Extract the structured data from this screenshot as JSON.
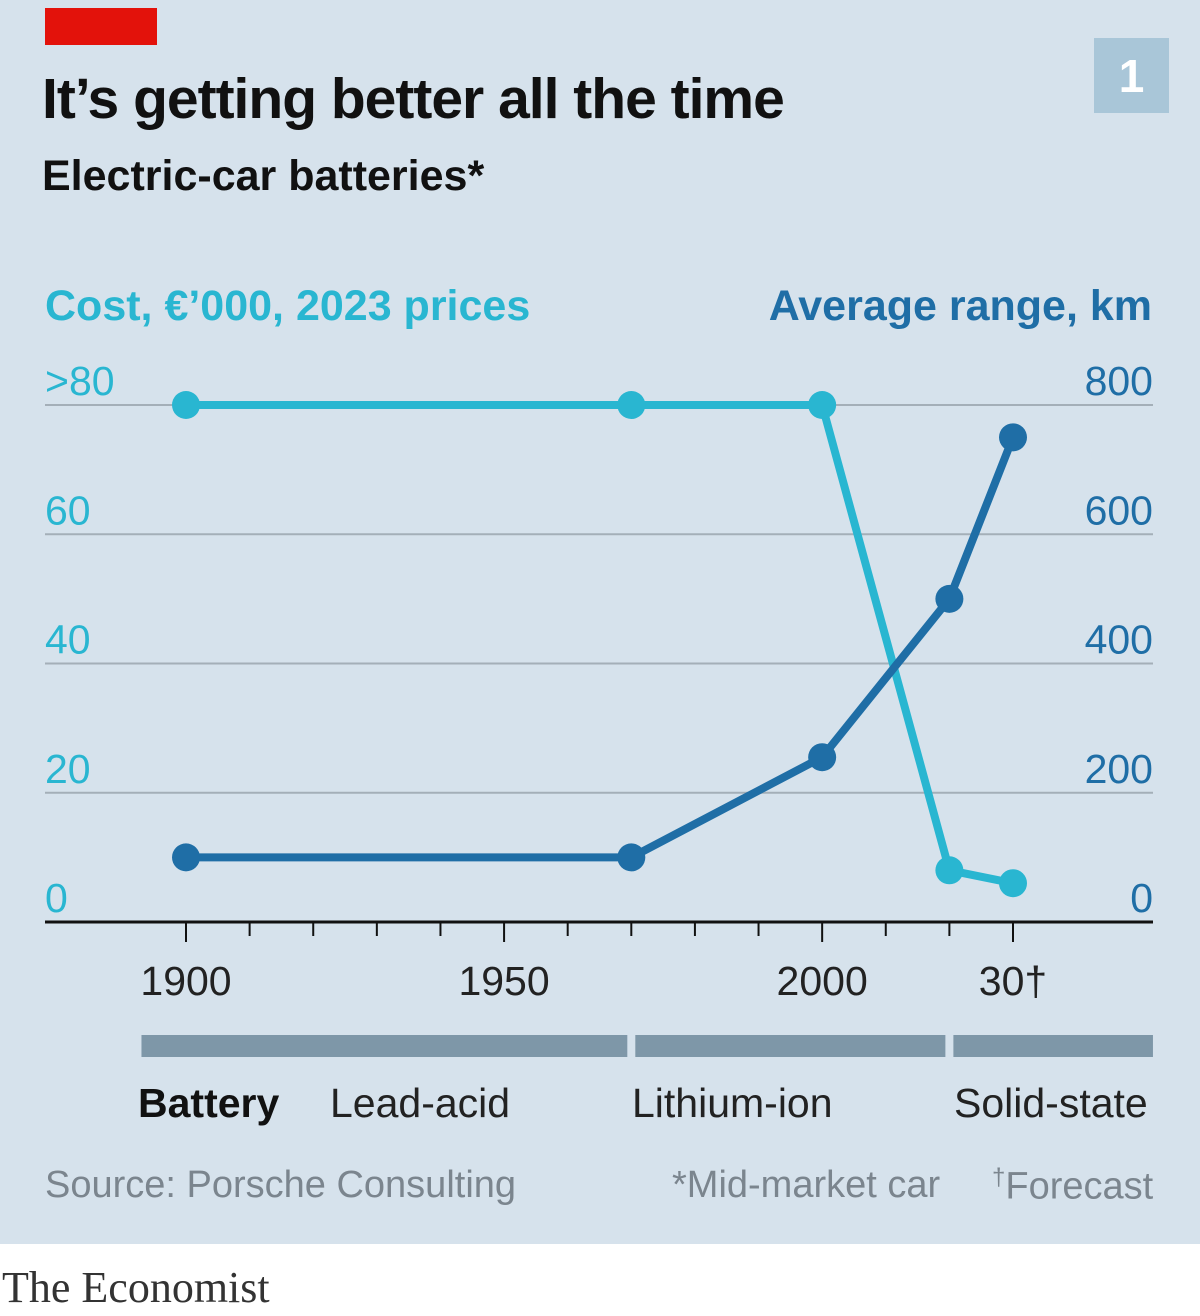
{
  "header": {
    "title": "It’s getting better all the time",
    "subtitle": "Electric-car batteries*",
    "chart_number": "1",
    "accent_color": "#e3120b"
  },
  "chart_data": {
    "type": "line",
    "x_ticks": [
      1900,
      1950,
      2000
    ],
    "x_tick_labels": [
      "1900",
      "1950",
      "2000",
      "30†"
    ],
    "x_last_tick_value": 2030,
    "xlim": [
      1880,
      2052
    ],
    "y_left": {
      "label": "Cost, €’000, 2023 prices",
      "ticks": [
        0,
        20,
        40,
        60,
        80
      ],
      "tick_labels": [
        "0",
        "20",
        "40",
        "60",
        ">80"
      ],
      "ylim": [
        0,
        80
      ],
      "color": "#29b6d1"
    },
    "y_right": {
      "label": "Average range, km",
      "ticks": [
        0,
        200,
        400,
        600,
        800
      ],
      "tick_labels": [
        "0",
        "200",
        "400",
        "600",
        "800"
      ],
      "ylim": [
        0,
        800
      ],
      "color": "#1f6ea6"
    },
    "series": [
      {
        "axis": "left",
        "color": "#29b6d1",
        "x": [
          1900,
          1970,
          2000,
          2020,
          2030
        ],
        "y": [
          80,
          80,
          80,
          8,
          6
        ]
      },
      {
        "axis": "right",
        "color": "#1f6ea6",
        "x": [
          1900,
          1970,
          2000,
          2020,
          2030
        ],
        "y": [
          100,
          100,
          255,
          500,
          750
        ]
      }
    ],
    "grid": true,
    "eras": {
      "label": "Battery",
      "items": [
        {
          "name": "Lead-acid",
          "start": 1893,
          "end": 1970
        },
        {
          "name": "Lithium-ion",
          "start": 1970,
          "end": 2020
        },
        {
          "name": "Solid-state",
          "start": 2020,
          "end": 2052
        }
      ],
      "bar_color": "#7e97a8"
    }
  },
  "footer": {
    "source": "Source: Porsche Consulting",
    "note1": "*Mid-market car",
    "note2_mark": "†",
    "note2": "Forecast"
  },
  "brand": "The Economist"
}
